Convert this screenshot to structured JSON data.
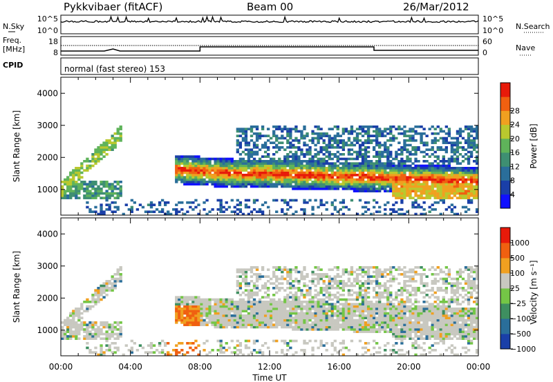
{
  "header": {
    "radar": "Pykkvibaer (fitACF)",
    "beam": "Beam 00",
    "date": "26/Mar/2012"
  },
  "sky_panel": {
    "left_label": "N.Sky",
    "right_label": "N.Search",
    "ticks_left": [
      "10^5",
      "10^0"
    ],
    "ticks_right": [
      "10^5",
      "10^0"
    ]
  },
  "freq_panel": {
    "left_label_1": "Freq.",
    "left_label_2": "[MHz]",
    "right_label": "Nave",
    "ticks_left": [
      "18",
      "8"
    ],
    "ticks_right": [
      "60",
      "0"
    ]
  },
  "cpid": {
    "label": "CPID",
    "text": "normal (fast stereo) 153"
  },
  "chart_data": [
    {
      "type": "heatmap",
      "title": "",
      "ylabel": "Slant Range [km]",
      "xlabel": "",
      "x_ticks": [
        "00:00",
        "04:00",
        "08:00",
        "12:00",
        "16:00",
        "20:00",
        "00:00"
      ],
      "y_ticks": [
        1000,
        2000,
        3000,
        4000
      ],
      "ylim": [
        200,
        4500
      ],
      "xlim_hours": [
        0,
        24
      ],
      "colorbar": {
        "label": "Power [dB]",
        "ticks": [
          4,
          8,
          12,
          16,
          20,
          24,
          28
        ],
        "colors": [
          "#1010ff",
          "#1a3fa8",
          "#2a6e9a",
          "#3e8f72",
          "#5fb35a",
          "#b9c82e",
          "#f0a020",
          "#f06010",
          "#e81a0a"
        ]
      }
    },
    {
      "type": "heatmap",
      "title": "",
      "ylabel": "Slant Range [km]",
      "xlabel": "Time UT",
      "x_ticks": [
        "00:00",
        "04:00",
        "08:00",
        "12:00",
        "16:00",
        "20:00",
        "00:00"
      ],
      "y_ticks": [
        1000,
        2000,
        3000,
        4000
      ],
      "ylim": [
        200,
        4500
      ],
      "xlim_hours": [
        0,
        24
      ],
      "colorbar": {
        "label": "Velocity [m s⁻¹]",
        "ticks": [
          1000,
          500,
          100,
          25,
          -25,
          -100,
          -500,
          -1000
        ],
        "tick_labels": [
          "1000",
          "500",
          "100",
          "25",
          "−25",
          "−100",
          "−500",
          "−1000"
        ],
        "colors": [
          "#1a3fa8",
          "#2a6e9a",
          "#3e8f60",
          "#74c646",
          "#c8c8c0",
          "#f0a020",
          "#f06010",
          "#e81a0a"
        ]
      }
    }
  ]
}
